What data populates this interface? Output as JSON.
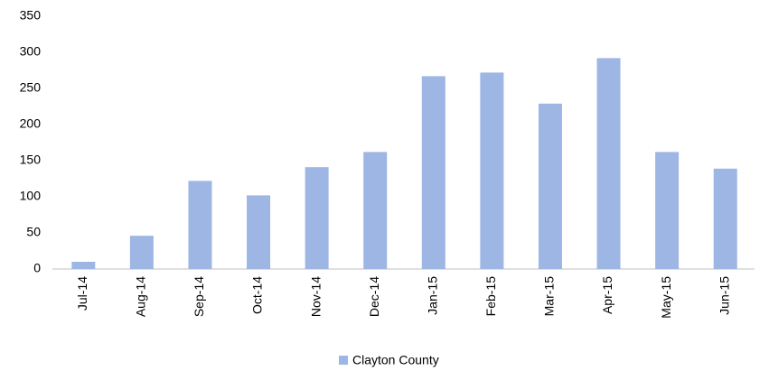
{
  "chart_data": {
    "type": "bar",
    "categories": [
      "Jul-14",
      "Aug-14",
      "Sep-14",
      "Oct-14",
      "Nov-14",
      "Dec-14",
      "Jan-15",
      "Feb-15",
      "Mar-15",
      "Apr-15",
      "May-15",
      "Jun-15"
    ],
    "series": [
      {
        "name": "Clayton County",
        "color": "#9db6e4",
        "values": [
          10,
          46,
          122,
          102,
          141,
          162,
          267,
          272,
          229,
          292,
          162,
          139
        ]
      }
    ],
    "ylim": [
      0,
      350
    ],
    "yticks": [
      0,
      50,
      100,
      150,
      200,
      250,
      300,
      350
    ],
    "grid": false,
    "legend": "bottom"
  }
}
